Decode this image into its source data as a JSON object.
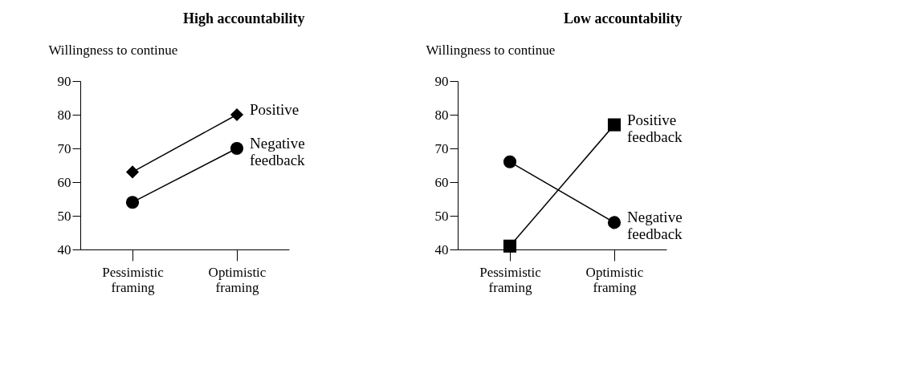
{
  "chart_data": [
    {
      "type": "line",
      "title": "High accountability",
      "ylabel": "Willingness to continue",
      "categories": [
        "Pessimistic framing",
        "Optimistic framing"
      ],
      "series": [
        {
          "name": "Positive",
          "color": "#000000",
          "marker": "diamond",
          "values": [
            63,
            80
          ]
        },
        {
          "name": "Negative feedback",
          "color": "#000000",
          "marker": "circle",
          "values": [
            54,
            70
          ]
        }
      ],
      "ylim": [
        40,
        90
      ],
      "yticks": [
        40,
        50,
        60,
        70,
        80,
        90
      ],
      "grid": false,
      "legend": false,
      "line_style": "solid"
    },
    {
      "type": "line",
      "title": "Low accountability",
      "ylabel": "Willingness to continue",
      "categories": [
        "Pessimistic framing",
        "Optimistic framing"
      ],
      "series": [
        {
          "name": "Positive feedback",
          "color": "#000000",
          "marker": "square",
          "values": [
            41,
            77
          ]
        },
        {
          "name": "Negative feedback",
          "color": "#000000",
          "marker": "circle",
          "values": [
            66,
            48
          ]
        }
      ],
      "ylim": [
        40,
        90
      ],
      "yticks": [
        40,
        50,
        60,
        70,
        80,
        90
      ],
      "grid": false,
      "legend": false,
      "line_style": "solid"
    }
  ]
}
